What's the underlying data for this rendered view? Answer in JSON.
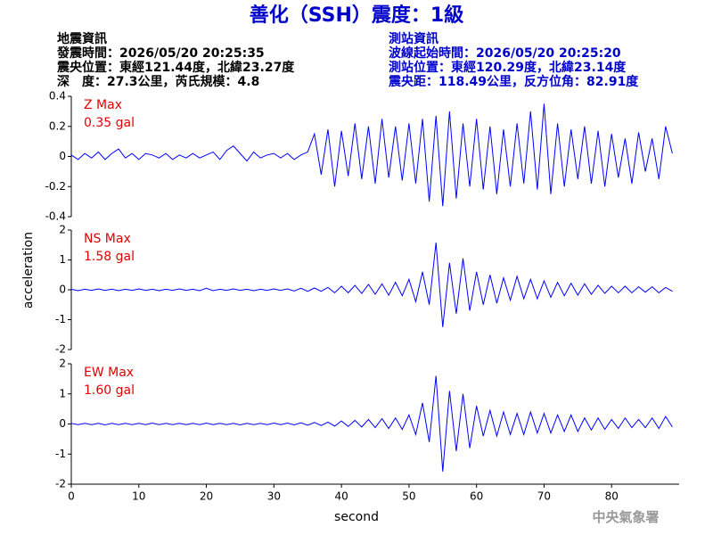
{
  "header": {
    "title": "善化（SSH）震度：1級",
    "event_info": [
      "地震資訊",
      "發震時間：2026/05/20 20:25:35",
      "震央位置：東經121.44度，北緯23.27度",
      "深　度：27.3公里，芮氏規模：4.8"
    ],
    "station_info": [
      "測站資訊",
      "波線起始時間：2026/05/20 20:25:20",
      "測站位置：東經120.29度，北緯23.14度",
      "震央距：118.49公里，反方位角：82.91度"
    ],
    "footer": "中央氣象署"
  },
  "chart_data": {
    "type": "line",
    "xlabel": "second",
    "ylabel": "acceleration",
    "xlim": [
      0,
      90
    ],
    "xticks": [
      0,
      10,
      20,
      30,
      40,
      50,
      60,
      70,
      80
    ],
    "x": [
      0,
      1,
      2,
      3,
      4,
      5,
      6,
      7,
      8,
      9,
      10,
      11,
      12,
      13,
      14,
      15,
      16,
      17,
      18,
      19,
      20,
      21,
      22,
      23,
      24,
      25,
      26,
      27,
      28,
      29,
      30,
      31,
      32,
      33,
      34,
      35,
      36,
      37,
      38,
      39,
      40,
      41,
      42,
      43,
      44,
      45,
      46,
      47,
      48,
      49,
      50,
      51,
      52,
      53,
      54,
      55,
      56,
      57,
      58,
      59,
      60,
      61,
      62,
      63,
      64,
      65,
      66,
      67,
      68,
      69,
      70,
      71,
      72,
      73,
      74,
      75,
      76,
      77,
      78,
      79,
      80,
      81,
      82,
      83,
      84,
      85,
      86,
      87,
      88,
      89
    ],
    "panels": [
      {
        "annotations": [
          "Z Max",
          "0.35 gal"
        ],
        "ylim": [
          -0.4,
          0.4
        ],
        "yticks": [
          -0.4,
          -0.2,
          0,
          0.2,
          0.4
        ],
        "series": [
          {
            "color": "#0000ff",
            "values": [
              0.01,
              -0.02,
              0.02,
              -0.01,
              0.03,
              -0.02,
              0.02,
              0.05,
              -0.01,
              0.02,
              -0.02,
              0.02,
              0.01,
              -0.01,
              0.02,
              -0.02,
              0.01,
              -0.01,
              0.02,
              -0.01,
              0.01,
              0.03,
              -0.02,
              0.04,
              0.07,
              0.02,
              -0.03,
              0.03,
              -0.01,
              0.01,
              0.02,
              -0.01,
              0.02,
              -0.02,
              0.01,
              0.03,
              0.15,
              -0.12,
              0.18,
              -0.2,
              0.17,
              -0.13,
              0.22,
              -0.15,
              0.2,
              -0.18,
              0.25,
              -0.14,
              0.2,
              -0.16,
              0.22,
              -0.18,
              0.25,
              -0.3,
              0.27,
              -0.33,
              0.3,
              -0.28,
              0.22,
              -0.2,
              0.25,
              -0.22,
              0.2,
              -0.25,
              0.18,
              -0.2,
              0.22,
              -0.18,
              0.3,
              -0.22,
              0.35,
              -0.25,
              0.22,
              -0.2,
              0.18,
              -0.15,
              0.2,
              -0.18,
              0.17,
              -0.2,
              0.15,
              -0.14,
              0.12,
              -0.18,
              0.16,
              -0.1,
              0.12,
              -0.15,
              0.2,
              0.02
            ]
          }
        ]
      },
      {
        "annotations": [
          "NS Max",
          "1.58 gal"
        ],
        "ylim": [
          -2,
          2
        ],
        "yticks": [
          -2,
          -1,
          0,
          1,
          2
        ],
        "series": [
          {
            "color": "#0000ff",
            "values": [
              0.02,
              -0.03,
              0.02,
              -0.02,
              0.03,
              -0.02,
              0.02,
              -0.03,
              0.02,
              -0.02,
              0.03,
              -0.02,
              0.02,
              -0.03,
              0.02,
              -0.02,
              0.03,
              -0.02,
              0.02,
              -0.03,
              0.05,
              -0.03,
              0.02,
              -0.02,
              0.03,
              -0.02,
              0.02,
              -0.03,
              0.02,
              -0.02,
              0.03,
              -0.02,
              0.03,
              -0.04,
              0.05,
              -0.05,
              0.06,
              -0.05,
              0.08,
              -0.1,
              0.12,
              -0.1,
              0.15,
              -0.12,
              0.18,
              -0.15,
              0.2,
              -0.18,
              0.25,
              -0.2,
              0.35,
              -0.4,
              0.6,
              -0.5,
              1.58,
              -1.25,
              0.9,
              -0.8,
              1.05,
              -0.7,
              0.6,
              -0.5,
              0.5,
              -0.45,
              0.4,
              -0.35,
              0.45,
              -0.3,
              0.35,
              -0.3,
              0.3,
              -0.25,
              0.25,
              -0.2,
              0.22,
              -0.18,
              0.2,
              -0.15,
              0.15,
              -0.12,
              0.12,
              -0.1,
              0.12,
              -0.1,
              0.1,
              -0.08,
              0.1,
              -0.1,
              0.08,
              -0.05
            ]
          }
        ]
      },
      {
        "annotations": [
          "EW Max",
          "1.60 gal"
        ],
        "ylim": [
          -2,
          2
        ],
        "yticks": [
          -2,
          -1,
          0,
          1,
          2
        ],
        "series": [
          {
            "color": "#0000ff",
            "values": [
              0.02,
              -0.02,
              0.02,
              -0.02,
              0.02,
              -0.03,
              0.02,
              -0.02,
              0.02,
              -0.02,
              0.02,
              -0.02,
              0.03,
              -0.02,
              0.02,
              -0.02,
              0.02,
              -0.02,
              0.02,
              -0.02,
              0.03,
              -0.02,
              0.02,
              -0.02,
              0.02,
              -0.03,
              0.02,
              -0.02,
              0.02,
              -0.02,
              0.03,
              -0.02,
              0.03,
              -0.03,
              0.04,
              -0.04,
              0.05,
              -0.05,
              0.06,
              -0.07,
              0.1,
              -0.08,
              0.12,
              -0.1,
              0.15,
              -0.12,
              0.18,
              -0.15,
              0.2,
              -0.18,
              0.3,
              -0.35,
              0.7,
              -0.6,
              1.6,
              -1.58,
              1.1,
              -0.9,
              1.0,
              -0.8,
              0.6,
              -0.4,
              0.45,
              -0.4,
              0.4,
              -0.35,
              0.35,
              -0.35,
              0.4,
              -0.3,
              0.35,
              -0.3,
              0.3,
              -0.25,
              0.3,
              -0.25,
              0.2,
              -0.2,
              0.2,
              -0.18,
              0.15,
              -0.15,
              0.2,
              -0.12,
              0.15,
              -0.12,
              0.2,
              -0.15,
              0.25,
              -0.1
            ]
          }
        ]
      }
    ]
  }
}
